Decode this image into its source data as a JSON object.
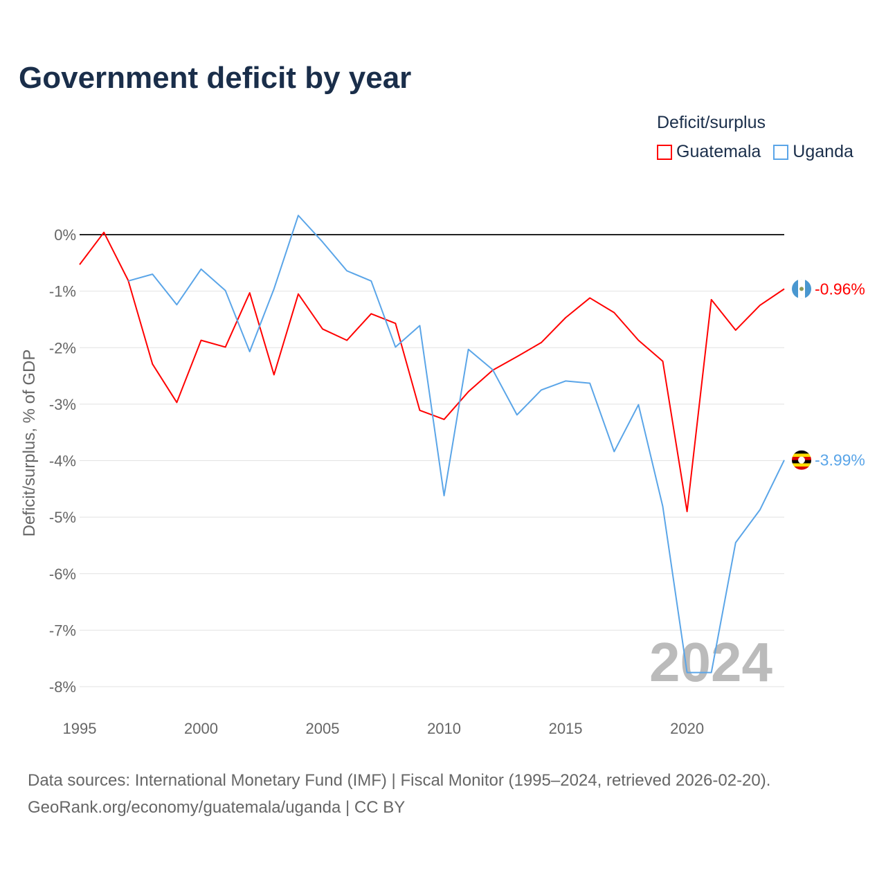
{
  "title": "Government deficit by year",
  "legend": {
    "title": "Deficit/surplus",
    "items": [
      {
        "label": "Guatemala",
        "color": "#ff0000"
      },
      {
        "label": "Uganda",
        "color": "#5aa5e8"
      }
    ]
  },
  "source": {
    "line1": "Data sources: International Monetary Fund (IMF) | Fiscal Monitor (1995–2024, retrieved 2026-02-20).",
    "line2": "GeoRank.org/economy/guatemala/uganda | CC BY"
  },
  "watermark_year": "2024",
  "chart_data": {
    "type": "line",
    "title": "Government deficit by year",
    "xlabel": "",
    "ylabel": "Deficit/surplus, % of GDP",
    "xlim": [
      1995,
      2024
    ],
    "ylim": [
      -8,
      0
    ],
    "x_ticks": [
      1995,
      2000,
      2005,
      2010,
      2015,
      2020
    ],
    "x_tick_labels": [
      "1995",
      "2000",
      "2005",
      "2010",
      "2015",
      "2020"
    ],
    "y_ticks": [
      0,
      -1,
      -2,
      -3,
      -4,
      -5,
      -6,
      -7,
      -8
    ],
    "y_tick_labels": [
      "0%",
      "-1%",
      "-2%",
      "-3%",
      "-4%",
      "-5%",
      "-6%",
      "-7%",
      "-8%"
    ],
    "grid": true,
    "legend_position": "top-right",
    "series": [
      {
        "name": "Guatemala",
        "color": "#ff0000",
        "end_label": "-0.96%",
        "x": [
          1995,
          1996,
          1997,
          1998,
          1999,
          2000,
          2001,
          2002,
          2003,
          2004,
          2005,
          2006,
          2007,
          2008,
          2009,
          2010,
          2011,
          2012,
          2013,
          2014,
          2015,
          2016,
          2017,
          2018,
          2019,
          2020,
          2021,
          2022,
          2023,
          2024
        ],
        "values": [
          -0.53,
          0.04,
          -0.81,
          -2.29,
          -2.97,
          -1.87,
          -1.99,
          -1.03,
          -2.48,
          -1.05,
          -1.67,
          -1.87,
          -1.4,
          -1.57,
          -3.11,
          -3.27,
          -2.78,
          -2.4,
          -2.16,
          -1.91,
          -1.47,
          -1.12,
          -1.38,
          -1.87,
          -2.24,
          -4.9,
          -1.15,
          -1.69,
          -1.25,
          -0.96
        ]
      },
      {
        "name": "Uganda",
        "color": "#5aa5e8",
        "end_label": "-3.99%",
        "x": [
          1997,
          1998,
          1999,
          2000,
          2001,
          2002,
          2003,
          2004,
          2005,
          2006,
          2007,
          2008,
          2009,
          2010,
          2011,
          2012,
          2013,
          2014,
          2015,
          2016,
          2017,
          2018,
          2019,
          2020,
          2021,
          2022,
          2023,
          2024
        ],
        "values": [
          -0.82,
          -0.7,
          -1.24,
          -0.61,
          -0.99,
          -2.07,
          -0.96,
          0.34,
          -0.13,
          -0.64,
          -0.82,
          -1.99,
          -1.61,
          -4.62,
          -2.03,
          -2.39,
          -3.19,
          -2.75,
          -2.59,
          -2.63,
          -3.84,
          -3.01,
          -4.81,
          -7.75,
          -7.75,
          -5.45,
          -4.87,
          -3.99
        ]
      }
    ]
  }
}
